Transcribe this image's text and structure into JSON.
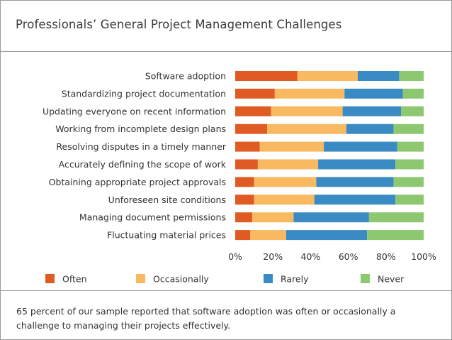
{
  "header": {
    "title": "Professionals’ General Project Management Challenges"
  },
  "chart_data": {
    "type": "bar",
    "orientation": "horizontal",
    "stacked": true,
    "title": "Professionals’ General Project Management Challenges",
    "categories": [
      "Software adoption",
      "Standardizing project documentation",
      "Updating everyone on recent information",
      "Working from incomplete design plans",
      "Resolving disputes in a timely manner",
      "Accurately defining the scope of work",
      "Obtaining appropriate project approvals",
      "Unforeseen site conditions",
      "Managing document permissions",
      "Fluctuating material prices"
    ],
    "series": [
      {
        "name": "Often",
        "color": "#e05a24",
        "values": [
          33,
          21,
          19,
          17,
          13,
          12,
          10,
          10,
          9,
          8
        ]
      },
      {
        "name": "Occasionally",
        "color": "#f8b960",
        "values": [
          32,
          37,
          38,
          42,
          34,
          32,
          33,
          32,
          22,
          19
        ]
      },
      {
        "name": "Rarely",
        "color": "#3a8ac4",
        "values": [
          22,
          31,
          31,
          25,
          39,
          41,
          41,
          43,
          40,
          43
        ]
      },
      {
        "name": "Never",
        "color": "#8dc870",
        "values": [
          13,
          11,
          12,
          16,
          14,
          15,
          16,
          15,
          29,
          30
        ]
      }
    ],
    "x_ticks": [
      "0%",
      "20%",
      "40%",
      "60%",
      "80%",
      "100%"
    ],
    "xlim": [
      0,
      100
    ],
    "xlabel": "",
    "ylabel": "",
    "grid": false,
    "legend": "bottom"
  },
  "footer": {
    "note": "65 percent of our sample reported that software adoption was often or occasionally a challenge to managing their projects effectively."
  }
}
